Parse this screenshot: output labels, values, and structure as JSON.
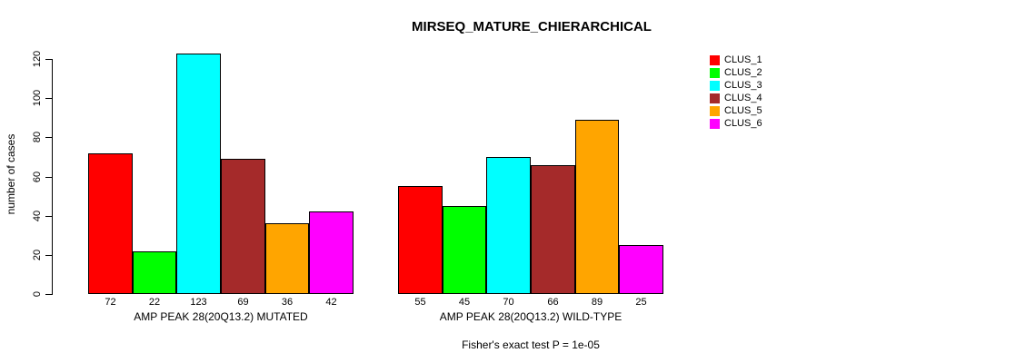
{
  "chart_data": {
    "type": "bar",
    "title": "MIRSEQ_MATURE_CHIERARCHICAL",
    "xlabel": "",
    "ylabel": "number of cases",
    "ylim": [
      0,
      120
    ],
    "yticks": [
      0,
      20,
      40,
      60,
      80,
      100,
      120
    ],
    "grid": false,
    "legend_position": "right",
    "bar_border_color": "#000000",
    "categories": [
      "AMP PEAK 28(20Q13.2) MUTATED",
      "AMP PEAK 28(20Q13.2) WILD-TYPE"
    ],
    "series": [
      {
        "name": "CLUS_1",
        "color": "#FF0000",
        "values": [
          72,
          55
        ]
      },
      {
        "name": "CLUS_2",
        "color": "#00FF00",
        "values": [
          22,
          45
        ]
      },
      {
        "name": "CLUS_3",
        "color": "#00FFFF",
        "values": [
          123,
          70
        ]
      },
      {
        "name": "CLUS_4",
        "color": "#A52A2A",
        "values": [
          69,
          66
        ]
      },
      {
        "name": "CLUS_5",
        "color": "#FFA500",
        "values": [
          36,
          89
        ]
      },
      {
        "name": "CLUS_6",
        "color": "#FF00FF",
        "values": [
          42,
          25
        ]
      }
    ],
    "annotation": "Fisher's exact test P = 1e-05"
  }
}
